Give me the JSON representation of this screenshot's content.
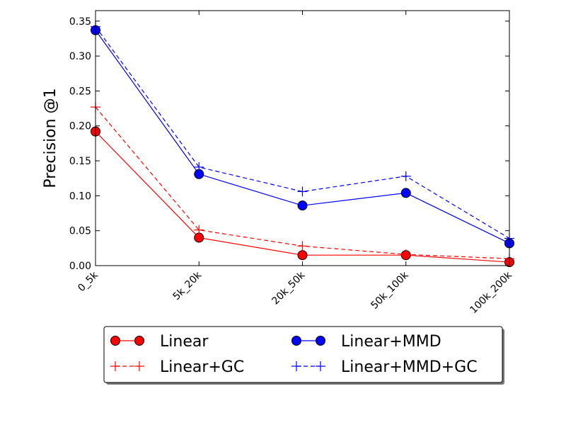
{
  "chart_data": {
    "type": "line",
    "title": "",
    "xlabel": "",
    "ylabel": "Precision @1",
    "categories": [
      "0_5k",
      "5k_20k",
      "20k_50k",
      "50k_100k",
      "100k_200k"
    ],
    "ylim": [
      0,
      0.365
    ],
    "yticks": [
      0.0,
      0.05,
      0.1,
      0.15,
      0.2,
      0.25,
      0.3,
      0.35
    ],
    "ytick_labels": [
      "0.00",
      "0.05",
      "0.10",
      "0.15",
      "0.20",
      "0.25",
      "0.30",
      "0.35"
    ],
    "grid": false,
    "legend_position": "below",
    "series": [
      {
        "name": "Linear",
        "color": "#ff0000",
        "linestyle": "solid",
        "marker": "circle",
        "values": [
          0.192,
          0.04,
          0.015,
          0.015,
          0.005
        ]
      },
      {
        "name": "Linear+GC",
        "color": "#ff0000",
        "linestyle": "dashed",
        "marker": "plus",
        "values": [
          0.227,
          0.051,
          0.028,
          0.016,
          0.01
        ]
      },
      {
        "name": "Linear+MMD",
        "color": "#0000ff",
        "linestyle": "solid",
        "marker": "circle",
        "values": [
          0.337,
          0.131,
          0.086,
          0.104,
          0.032
        ]
      },
      {
        "name": "Linear+MMD+GC",
        "color": "#0000ff",
        "linestyle": "dashed",
        "marker": "plus",
        "values": [
          0.342,
          0.141,
          0.106,
          0.128,
          0.039
        ]
      }
    ]
  }
}
